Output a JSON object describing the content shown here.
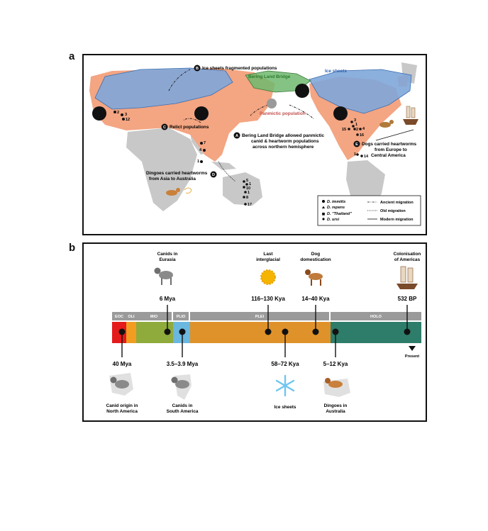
{
  "panel_a": {
    "letter": "a",
    "labels": {
      "ice_sheets_top": "Ice sheets",
      "bering_land_bridge": "Bering Land Bridge",
      "panmictic_population": "Panmictic population",
      "b_marker": "B",
      "b_text": "Ice sheets fragmented populations",
      "c_marker": "C",
      "c_text": "Relict populations",
      "a_marker": "A",
      "a_text_1": "Bering Land Bridge allowed panmictic",
      "a_text_2": "canid & heartworm populations",
      "a_text_3": "across northern hemisphere",
      "d_marker": "D",
      "d_text_1": "Dingoes carried heartworms",
      "d_text_2": "from Asia to Australia",
      "e_marker": "E",
      "e_text_1": "Dogs carried heartworms",
      "e_text_2": "from Europe to",
      "e_text_3": "Central America"
    },
    "data_labels": {
      "eu_1": "2",
      "eu_2": "3",
      "eu_3": "12",
      "as_1": "7",
      "as_2": "4",
      "as_3": "1",
      "au_1": "5",
      "au_2": "1",
      "au_3": "10",
      "au_4": "1",
      "au_5": "8",
      "au_6": "17",
      "na_1": "3",
      "na_2": "1",
      "na_3": "15",
      "na_4": "2",
      "na_5": "16",
      "na_6": "4",
      "ca_1": "1",
      "ca_2": "14"
    },
    "legend": {
      "species": [
        {
          "symbol": "circle",
          "label": "D. immitis"
        },
        {
          "symbol": "triangle",
          "label": "D. repens"
        },
        {
          "symbol": "square",
          "label": "D. \"Thailand\""
        },
        {
          "symbol": "diamond",
          "label": "D. ursi"
        }
      ],
      "migrations": [
        {
          "style": "dash-dot",
          "label": "Ancient migration"
        },
        {
          "style": "dotted",
          "label": "Old migration"
        },
        {
          "style": "solid",
          "label": "Modern migration"
        }
      ]
    },
    "colors": {
      "ice": "#7fa7d9",
      "canid_range": "#f4a582",
      "bering": "#5aa469",
      "land": "#c8c8c8"
    }
  },
  "panel_b": {
    "letter": "b",
    "epochs": [
      {
        "label": "EOC",
        "color": "#e41a1c"
      },
      {
        "label": "OLI",
        "color": "#f39c22"
      },
      {
        "label": "MIO",
        "color": "#8fab3c"
      },
      {
        "label": "PLIO",
        "color": "#6ab7e0"
      },
      {
        "label": "PLEI",
        "color": "#e0922a"
      },
      {
        "label": "HOLO",
        "color": "#2e7d6b"
      }
    ],
    "events_above": [
      {
        "date": "6 Mya",
        "caption_1": "Canids in",
        "caption_2": "Eurasia",
        "icon": "wolf-icon"
      },
      {
        "date": "116–130 Kya",
        "caption_1": "Last",
        "caption_2": "interglacial",
        "icon": "sun-icon"
      },
      {
        "date": "14–40 Kya",
        "caption_1": "Dog",
        "caption_2": "domestication",
        "icon": "dog-icon"
      },
      {
        "date": "532 BP",
        "caption_1": "Colonisation",
        "caption_2": "of Americas",
        "icon": "ship-icon"
      }
    ],
    "events_below": [
      {
        "date": "40 Mya",
        "caption_1": "Canid origin in",
        "caption_2": "North America",
        "icon": "wolf-icon"
      },
      {
        "date": "3.5–3.9 Mya",
        "caption_1": "Canids in",
        "caption_2": "South America",
        "icon": "wolf-icon"
      },
      {
        "date": "58–72 Kya",
        "caption_1": "Ice sheets",
        "caption_2": "",
        "icon": "snowflake-icon"
      },
      {
        "date": "5–12 Kya",
        "caption_1": "Dingoes in",
        "caption_2": "Australia",
        "icon": "dingo-icon"
      }
    ],
    "present_label": "Present"
  }
}
